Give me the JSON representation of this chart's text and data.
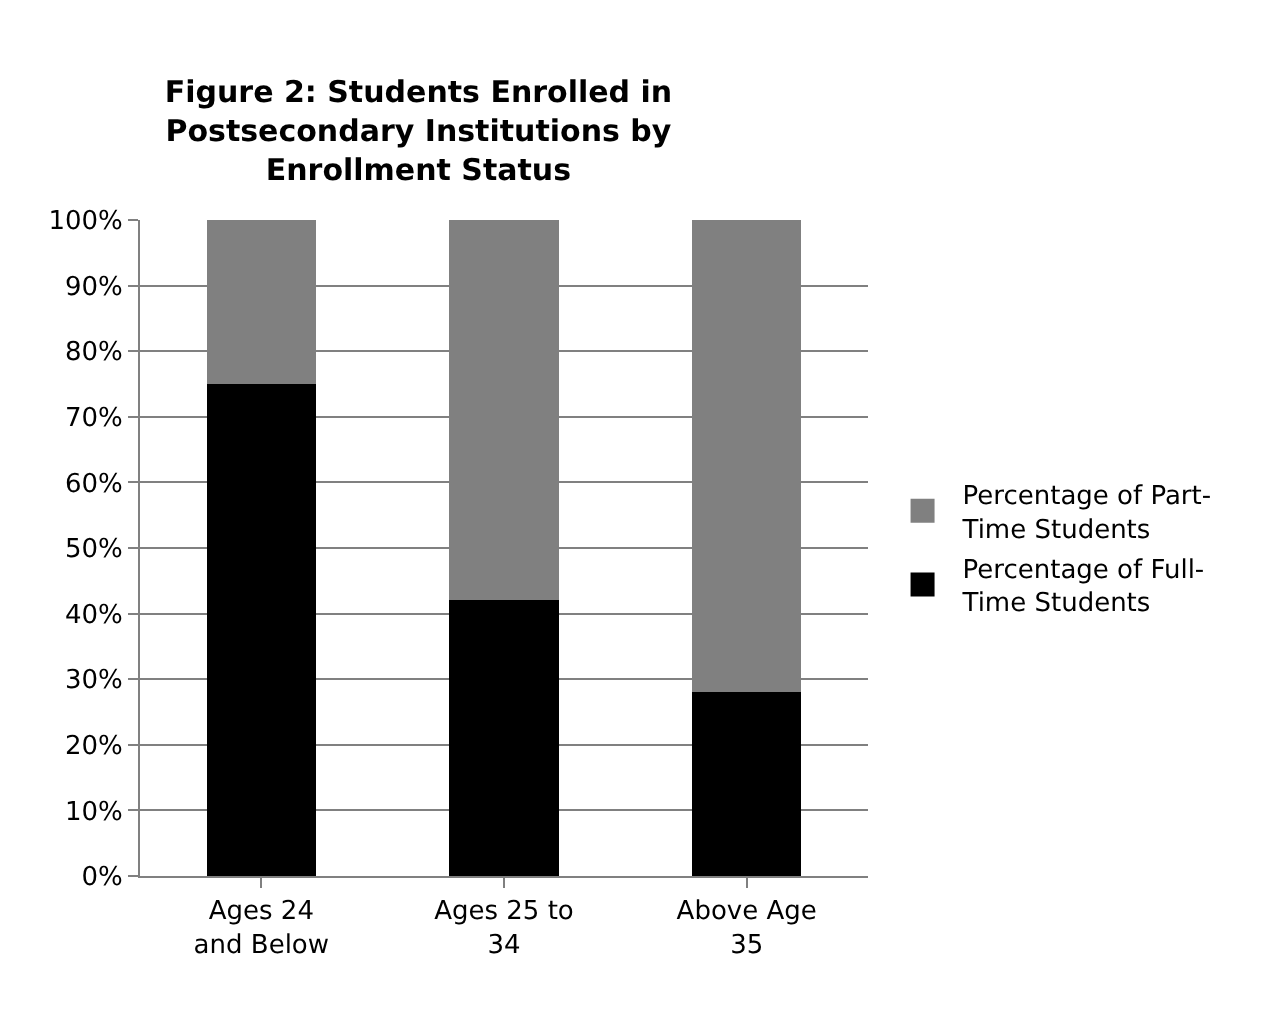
{
  "chart_data": {
    "type": "bar",
    "title": "Figure 2: Students Enrolled in Postsecondary Institutions by Enrollment Status",
    "categories": [
      "Ages 24 and Below",
      "Ages 25 to 34",
      "Above Age 35"
    ],
    "stacked": true,
    "series": [
      {
        "name": "Percentage of Full-Time Students",
        "color": "#000000",
        "values": [
          75,
          42,
          28
        ]
      },
      {
        "name": "Percentage of Part-Time Students",
        "color": "#808080",
        "values": [
          25,
          58,
          72
        ]
      }
    ],
    "ylim": [
      0,
      100
    ],
    "yticks": [
      {
        "value": 0,
        "label": "0%"
      },
      {
        "value": 10,
        "label": "10%"
      },
      {
        "value": 20,
        "label": "20%"
      },
      {
        "value": 30,
        "label": "30%"
      },
      {
        "value": 40,
        "label": "40%"
      },
      {
        "value": 50,
        "label": "50%"
      },
      {
        "value": 60,
        "label": "60%"
      },
      {
        "value": 70,
        "label": "70%"
      },
      {
        "value": 80,
        "label": "80%"
      },
      {
        "value": 90,
        "label": "90%"
      },
      {
        "value": 100,
        "label": "100%"
      }
    ],
    "grid": "y",
    "legend": "right"
  }
}
